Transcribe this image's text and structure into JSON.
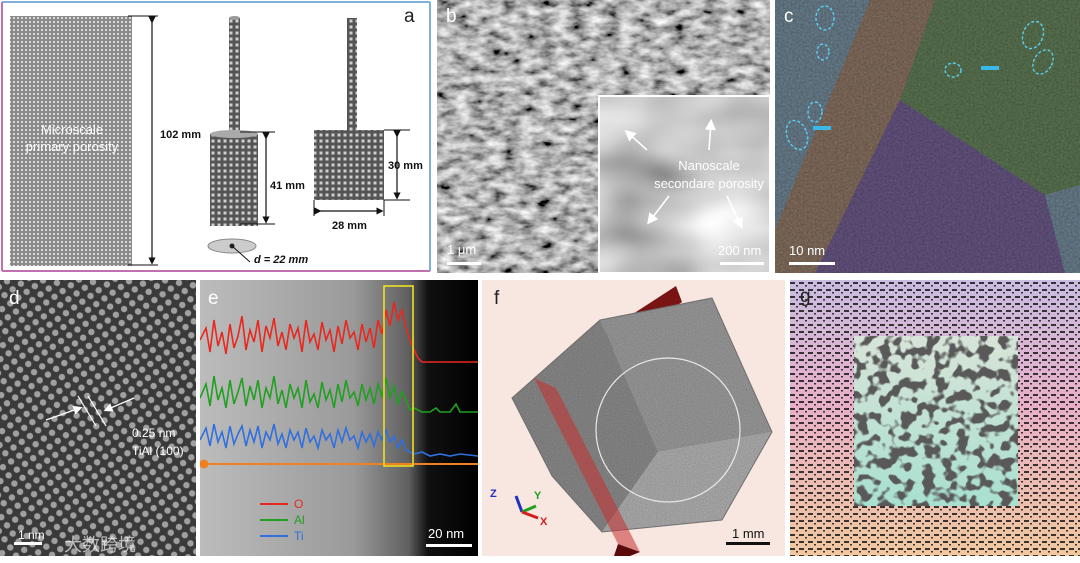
{
  "panels": {
    "a": {
      "label": "a",
      "primary_porosity": "Microscale primary porosity",
      "dim_left_height": "102 mm",
      "dim_mid_height": "41 mm",
      "dim_mid_diameter": "d = 22 mm",
      "dim_right_height": "30 mm",
      "dim_right_width": "28 mm"
    },
    "b": {
      "label": "b",
      "scale_bar": "1 μm",
      "inset_caption": "Nanoscale secondare porosity",
      "inset_scale_bar": "200 nm"
    },
    "c": {
      "label": "c",
      "scale_bar": "10 nm"
    },
    "d": {
      "label": "d",
      "spacing": "0.25 nm",
      "plane": "TiAl (100)",
      "watermark": "大数跨境",
      "scale_bar": "1 nm"
    },
    "e": {
      "label": "e",
      "legend": [
        {
          "name": "O",
          "color": "#e8281e"
        },
        {
          "name": "Al",
          "color": "#20a020"
        },
        {
          "name": "Ti",
          "color": "#2f6fe0"
        }
      ],
      "scale_bar": "20 nm"
    },
    "f": {
      "label": "f",
      "scale_bar": "1 mm",
      "axes": [
        "Z",
        "Y",
        "X"
      ]
    },
    "g": {
      "label": "g"
    }
  }
}
